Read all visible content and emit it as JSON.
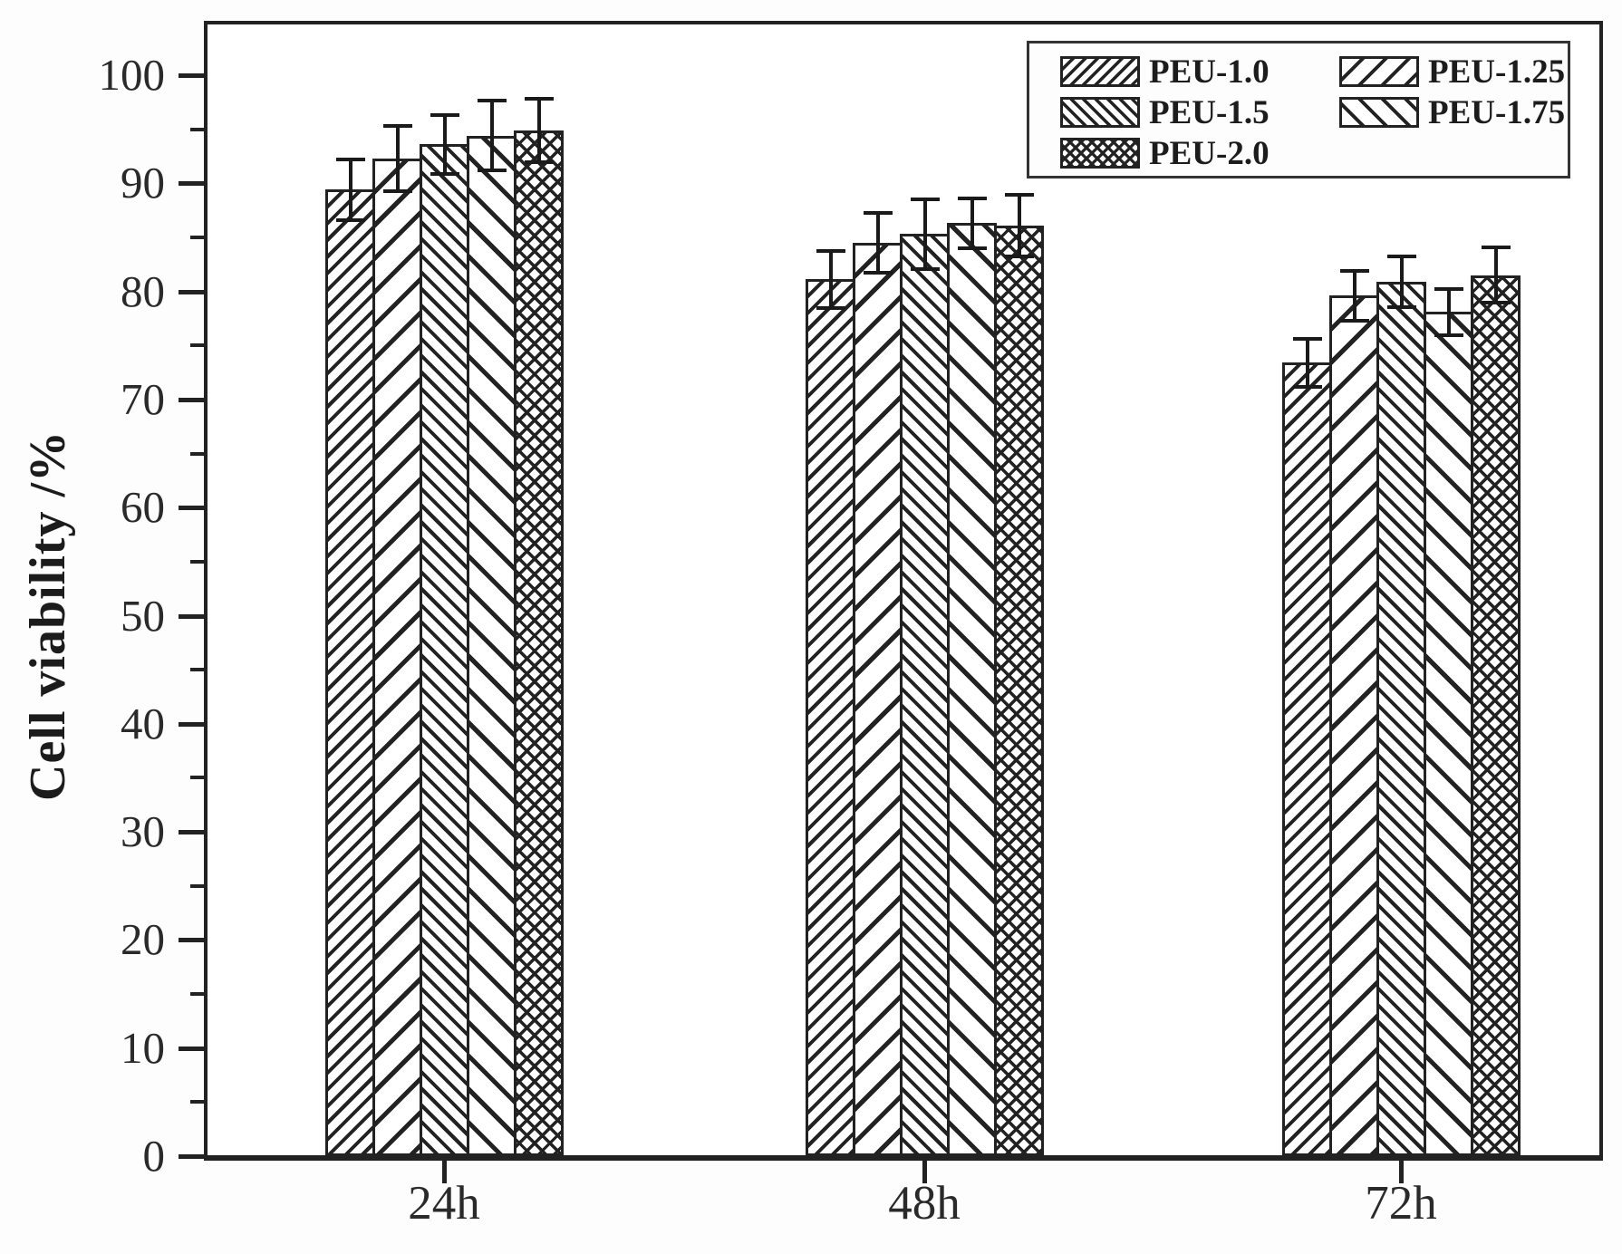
{
  "chart_data": {
    "type": "bar",
    "title": "",
    "xlabel": "",
    "ylabel": "Cell viability /%",
    "ylim": [
      0,
      105
    ],
    "yticks": [
      0,
      10,
      20,
      30,
      40,
      50,
      60,
      70,
      80,
      90,
      100
    ],
    "yticks_minor": [
      5,
      15,
      25,
      35,
      45,
      55,
      65,
      75,
      85,
      95
    ],
    "grid": false,
    "legend_position": "top-right",
    "legend_columns": 2,
    "categories": [
      "24h",
      "48h",
      "72h"
    ],
    "series": [
      {
        "name": "PEU-1.0",
        "pattern": "diagonal-dense",
        "values": [
          89.4,
          81.1,
          73.4
        ],
        "errors": [
          3.0,
          2.8,
          2.4
        ]
      },
      {
        "name": "PEU-1.25",
        "pattern": "diagonal-sparse",
        "values": [
          92.3,
          84.5,
          79.6
        ],
        "errors": [
          3.2,
          2.9,
          2.5
        ]
      },
      {
        "name": "PEU-1.5",
        "pattern": "backdiag-dense",
        "values": [
          93.6,
          85.3,
          80.9
        ],
        "errors": [
          2.9,
          3.4,
          2.5
        ]
      },
      {
        "name": "PEU-1.75",
        "pattern": "backdiag-sparse",
        "values": [
          94.4,
          86.3,
          78.1
        ],
        "errors": [
          3.4,
          2.5,
          2.3
        ]
      },
      {
        "name": "PEU-2.0",
        "pattern": "crosshatch",
        "values": [
          94.9,
          86.1,
          81.5
        ],
        "errors": [
          3.1,
          3.0,
          2.7
        ]
      }
    ],
    "colors": {
      "ink": "#222222",
      "background": "#fdfdfd",
      "bar_fill": "#ffffff"
    }
  }
}
